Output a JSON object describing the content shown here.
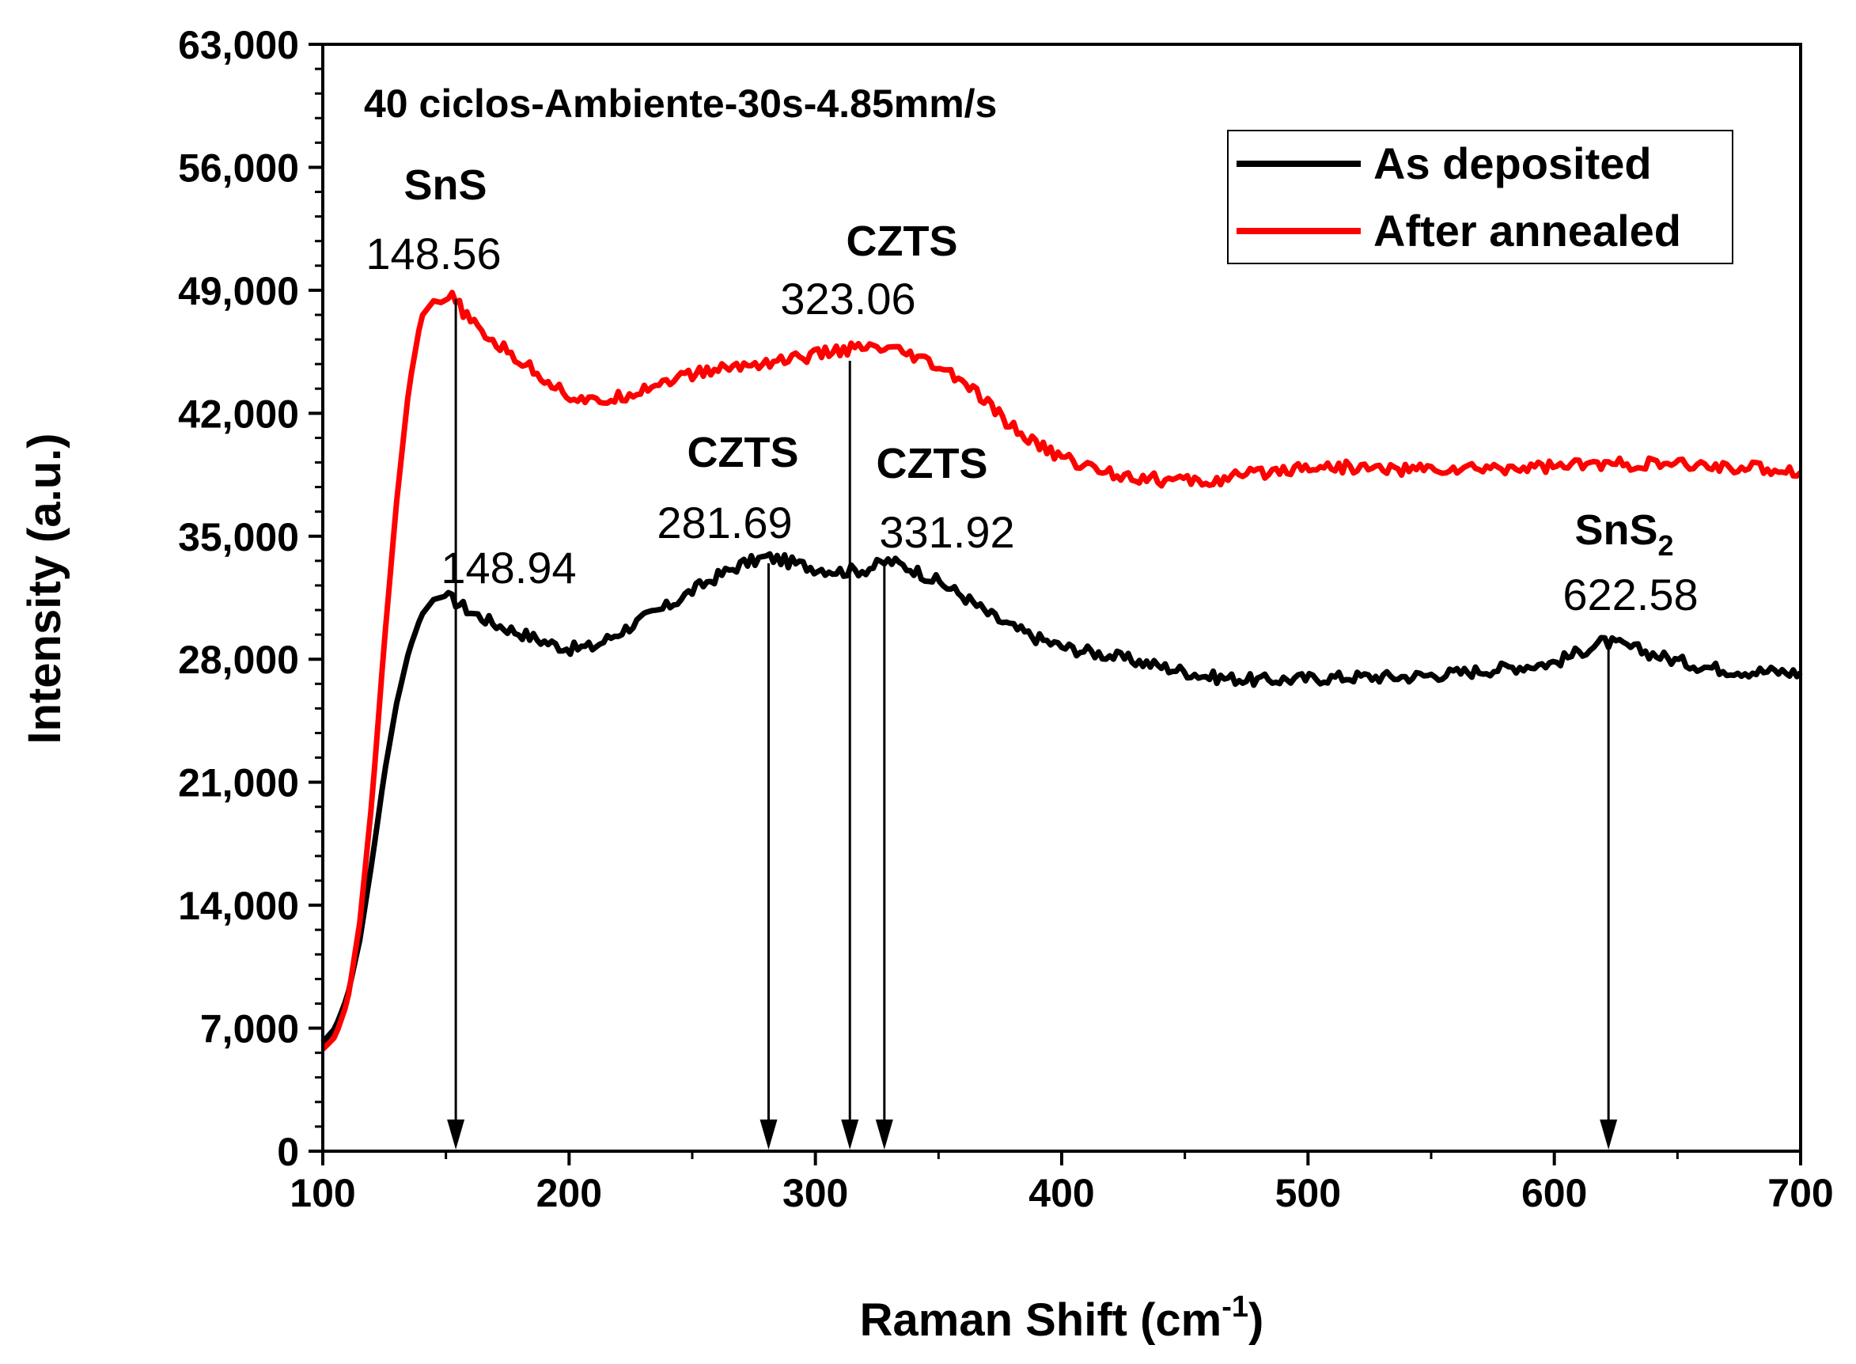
{
  "chart_data": {
    "type": "line",
    "title": "40 ciclos-Ambiente-30s-4.85mm/s",
    "xlabel": "Raman Shift (cm",
    "xlabel_superscript": "-1",
    "xlabel_suffix": ")",
    "ylabel": "Intensity (a.u.)",
    "xlim": [
      100,
      700
    ],
    "ylim": [
      0,
      63000
    ],
    "xticks": [
      100,
      200,
      300,
      400,
      500,
      600,
      700
    ],
    "xtick_labels": [
      "100",
      "200",
      "300",
      "400",
      "500",
      "600",
      "700"
    ],
    "yticks": [
      0,
      7000,
      14000,
      21000,
      28000,
      35000,
      42000,
      49000,
      56000,
      63000
    ],
    "ytick_labels": [
      "0",
      "7,000",
      "14,000",
      "21,000",
      "28,000",
      "35,000",
      "42,000",
      "49,000",
      "56,000",
      "63,000"
    ],
    "legend_position": "top-right",
    "series": [
      {
        "name": "As deposited",
        "color": "#000000",
        "x": [
          100,
          105,
          110,
          115,
          120,
          125,
          130,
          135,
          140,
          145,
          150,
          155,
          160,
          170,
          180,
          190,
          200,
          210,
          220,
          230,
          240,
          250,
          260,
          270,
          280,
          285,
          290,
          300,
          310,
          320,
          330,
          340,
          350,
          360,
          370,
          380,
          390,
          400,
          420,
          440,
          460,
          480,
          500,
          520,
          540,
          560,
          580,
          600,
          610,
          620,
          630,
          640,
          650,
          660,
          670,
          680,
          690,
          700
        ],
        "y": [
          6200,
          7000,
          8800,
          12000,
          16500,
          21500,
          25500,
          28500,
          30500,
          31400,
          31600,
          31200,
          30700,
          30000,
          29500,
          29000,
          28600,
          28700,
          29500,
          30300,
          31000,
          31900,
          32700,
          33400,
          33800,
          33700,
          33500,
          33200,
          33000,
          33100,
          33600,
          33100,
          32400,
          31600,
          30600,
          29800,
          29200,
          28700,
          28200,
          27600,
          27000,
          26800,
          26900,
          27000,
          27000,
          27200,
          27500,
          27800,
          28400,
          29000,
          28700,
          28300,
          27900,
          27600,
          27400,
          27300,
          27300,
          27200
        ]
      },
      {
        "name": "After annealed",
        "color": "#ff0000",
        "x": [
          100,
          105,
          110,
          115,
          120,
          125,
          130,
          135,
          140,
          145,
          148,
          152,
          155,
          160,
          170,
          180,
          190,
          200,
          210,
          220,
          230,
          240,
          250,
          260,
          270,
          280,
          290,
          300,
          310,
          320,
          330,
          340,
          350,
          360,
          370,
          380,
          390,
          400,
          410,
          420,
          440,
          460,
          480,
          500,
          520,
          540,
          560,
          580,
          600,
          620,
          640,
          660,
          680,
          700
        ],
        "y": [
          5800,
          6500,
          8500,
          13000,
          20000,
          29000,
          37000,
          43500,
          47500,
          48400,
          48300,
          48600,
          48200,
          47200,
          46000,
          45000,
          44000,
          43000,
          42600,
          42900,
          43400,
          43900,
          44200,
          44500,
          44700,
          44900,
          45100,
          45300,
          45600,
          45700,
          45600,
          45200,
          44600,
          43800,
          42500,
          41200,
          40200,
          39500,
          39000,
          38600,
          38200,
          38100,
          38600,
          39000,
          38900,
          38800,
          38800,
          38900,
          39000,
          39100,
          39100,
          39000,
          38900,
          38700
        ]
      }
    ],
    "annotations": [
      {
        "label": "SnS",
        "value": "148.56",
        "arrow_x": 154,
        "series": "After annealed"
      },
      {
        "label": "CZTS",
        "value": "323.06",
        "arrow_x": 314,
        "series": "After annealed"
      },
      {
        "label": "",
        "value": "148.94",
        "arrow_x": null,
        "series": "As deposited"
      },
      {
        "label": "CZTS",
        "value": "281.69",
        "arrow_x": 281,
        "series": "As deposited"
      },
      {
        "label": "CZTS",
        "value": "331.92",
        "arrow_x": 328,
        "series": "As deposited"
      },
      {
        "label": "SnS",
        "label_subscript": "2",
        "value": "622.58",
        "arrow_x": 622,
        "series": "As deposited"
      }
    ]
  }
}
